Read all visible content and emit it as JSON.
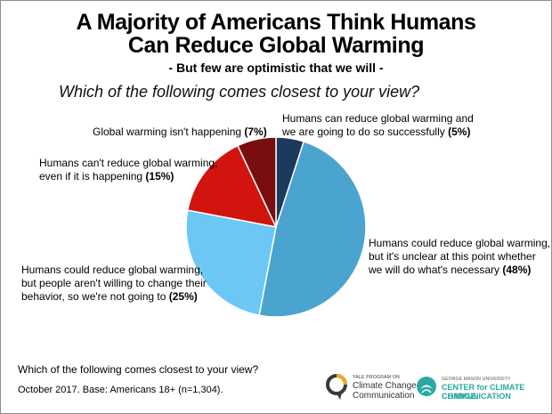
{
  "header": {
    "title_line1": "A Majority of Americans Think Humans",
    "title_line2": "Can Reduce Global Warming",
    "subtitle": "- But few are optimistic that we will -",
    "question": "Which of the following comes closest to your view?"
  },
  "chart_data": {
    "type": "pie",
    "title": "A Majority of Americans Think Humans Can Reduce Global Warming",
    "slices": [
      {
        "label": "Humans can reduce global warming and we are going to do so successfully",
        "value": 5,
        "color": "#1b3a5c"
      },
      {
        "label": "Humans could reduce global warming, but it's unclear at this point whether we will do what's necessary",
        "value": 48,
        "color": "#4ba3cf"
      },
      {
        "label": "Humans could reduce global warming, but people aren't willing to change their behavior, so we're not going to",
        "value": 25,
        "color": "#6cc7f4"
      },
      {
        "label": "Humans can't reduce global warming, even if it is happening",
        "value": 15,
        "color": "#d1140d"
      },
      {
        "label": "Global warming isn't happening",
        "value": 7,
        "color": "#7a0d0d"
      }
    ]
  },
  "labels": {
    "s0_a": "Humans can reduce global warming and",
    "s0_b": "we are going to do so successfully ",
    "s0_pct": "(5%)",
    "s1_a": "Humans could reduce global warming,",
    "s1_b": "but it's unclear at this point whether",
    "s1_c": "we will do what's necessary ",
    "s1_pct": "(48%)",
    "s2_a": "Humans could reduce global warming,",
    "s2_b": "but people aren't willing to change their",
    "s2_c": "behavior, so we're not going to ",
    "s2_pct": "(25%)",
    "s3_a": "Humans can't reduce global warming,",
    "s3_b": "even if it is happening ",
    "s3_pct": "(15%)",
    "s4_a": "Global warming isn't happening ",
    "s4_pct": "(7%)"
  },
  "footer": {
    "question": "Which of the following comes closest to your view?",
    "note": "October 2017. Base: Americans 18+ (n=1,304)."
  },
  "logos": {
    "yale_small": "YALE PROGRAM ON",
    "yale_line1": "Climate Change",
    "yale_line2": "Communication",
    "gmu_small": "GEORGE MASON UNIVERSITY",
    "gmu_line1": "CENTER for CLIMATE CHANGE",
    "gmu_line2": "COMMUNICATION"
  }
}
